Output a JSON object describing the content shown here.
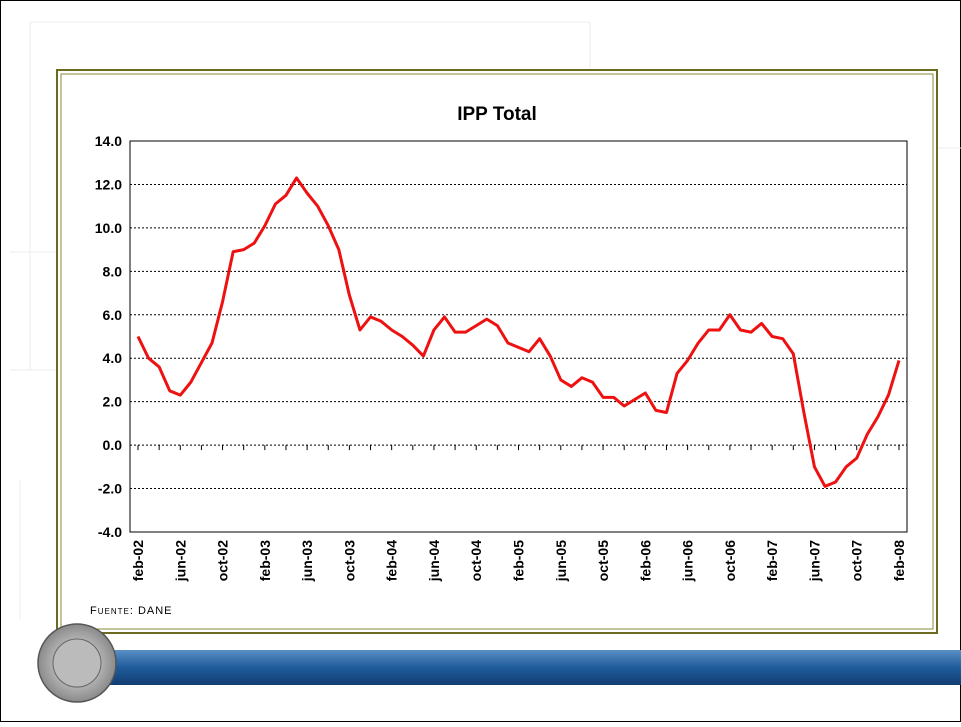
{
  "chart_data": {
    "type": "line",
    "title": "IPP Total",
    "source": "Fuente: DANE",
    "categories": [
      "feb-02",
      null,
      null,
      null,
      "jun-02",
      null,
      null,
      null,
      "oct-02",
      null,
      null,
      null,
      "feb-03",
      null,
      null,
      null,
      "jun-03",
      null,
      null,
      null,
      "oct-03",
      null,
      null,
      null,
      "feb-04",
      null,
      null,
      null,
      "jun-04",
      null,
      null,
      null,
      "oct-04",
      null,
      null,
      null,
      "feb-05",
      null,
      null,
      null,
      "jun-05",
      null,
      null,
      null,
      "oct-05",
      null,
      null,
      null,
      "feb-06",
      null,
      null,
      null,
      "jun-06",
      null,
      null,
      null,
      "oct-06",
      null,
      null,
      null,
      "feb-07",
      null,
      null,
      null,
      "jun-07",
      null,
      null,
      null,
      "oct-07",
      null,
      null,
      null,
      "feb-08"
    ],
    "series": [
      {
        "name": "IPP Total",
        "color": "#ee1111",
        "values": [
          5.0,
          4.0,
          3.6,
          2.5,
          2.3,
          2.9,
          3.8,
          4.7,
          6.6,
          8.9,
          9.0,
          9.3,
          10.1,
          11.1,
          11.5,
          12.3,
          11.6,
          11.0,
          10.1,
          9.0,
          6.9,
          5.3,
          5.9,
          5.7,
          5.3,
          5.0,
          4.6,
          4.1,
          5.3,
          5.9,
          5.2,
          5.2,
          5.5,
          5.8,
          5.5,
          4.7,
          4.5,
          4.3,
          4.9,
          4.1,
          3.0,
          2.7,
          3.1,
          2.9,
          2.2,
          2.2,
          1.8,
          2.1,
          2.4,
          1.6,
          1.5,
          3.3,
          3.9,
          4.7,
          5.3,
          5.3,
          6.0,
          5.3,
          5.2,
          5.6,
          5.0,
          4.9,
          4.2,
          1.5,
          -1.0,
          -1.9,
          -1.7,
          -1.0,
          -0.6,
          0.5,
          1.3,
          2.3,
          3.9
        ]
      }
    ],
    "ylim": [
      -4,
      14
    ],
    "yticks": [
      {
        "value": -4,
        "label": "-4.0"
      },
      {
        "value": -2,
        "label": "-2.0"
      },
      {
        "value": 0,
        "label": "0.0"
      },
      {
        "value": 2,
        "label": "2.0"
      },
      {
        "value": 4,
        "label": "4.0"
      },
      {
        "value": 6,
        "label": "6.0"
      },
      {
        "value": 8,
        "label": "8.0"
      },
      {
        "value": 10,
        "label": "10.0"
      },
      {
        "value": 12,
        "label": "12.0"
      },
      {
        "value": 14,
        "label": "14.0"
      }
    ],
    "grid": true
  }
}
